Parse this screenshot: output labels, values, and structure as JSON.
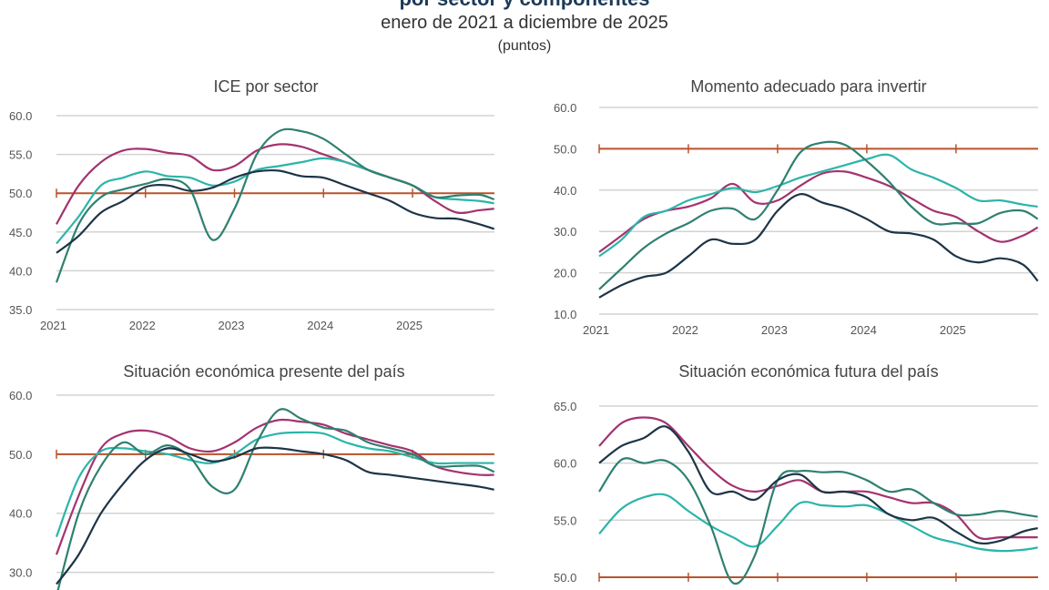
{
  "header": {
    "title_partial": "por sector y componentes",
    "subtitle": "enero de 2021 a diciembre de 2025",
    "unit": "(puntos)"
  },
  "colors": {
    "magenta": "#a3336f",
    "light_teal": "#2bb5aa",
    "dark_green": "#2f8070",
    "navy": "#1d3447",
    "reference": "#b8532c",
    "grid": "#d3d3d3"
  },
  "chart_data": [
    {
      "type": "line",
      "title": "ICE por sector",
      "ylim": [
        35,
        60
      ],
      "yticks": [
        "60.0",
        "55.0",
        "50.0",
        "45.0",
        "40.0",
        "35.0"
      ],
      "xticks": [
        "2021",
        "2022",
        "2023",
        "2024",
        "2025"
      ],
      "grid": true,
      "reference_line": 50,
      "x": [
        "2021-01",
        "2021-04",
        "2021-07",
        "2021-10",
        "2022-01",
        "2022-04",
        "2022-07",
        "2022-10",
        "2023-01",
        "2023-04",
        "2023-07",
        "2023-10",
        "2024-01",
        "2024-04",
        "2024-07",
        "2024-10",
        "2025-01",
        "2025-04",
        "2025-07",
        "2025-10",
        "2025-12"
      ],
      "series": [
        {
          "color": "#a3336f",
          "values": [
            46,
            51,
            54,
            55.5,
            55.7,
            55.2,
            54.8,
            53,
            53.5,
            55.5,
            56.3,
            56,
            55,
            54,
            53,
            52,
            51,
            49,
            47.5,
            47.8,
            48
          ]
        },
        {
          "color": "#2bb5aa",
          "values": [
            43.5,
            47,
            51,
            52,
            52.8,
            52.2,
            52,
            51,
            51.5,
            53,
            53.5,
            54,
            54.5,
            54,
            53,
            52,
            51,
            49.5,
            49.2,
            49,
            48.7
          ]
        },
        {
          "color": "#2f8070",
          "values": [
            38.5,
            46,
            49.5,
            50.5,
            51.2,
            51.8,
            50.5,
            44,
            48,
            55,
            58,
            58,
            57,
            55,
            53,
            52,
            51,
            49.5,
            49.7,
            49.8,
            49.2
          ]
        },
        {
          "color": "#1d3447",
          "values": [
            42.3,
            44.5,
            47.5,
            49,
            50.8,
            51,
            50.3,
            50.7,
            52,
            52.8,
            52.9,
            52.2,
            52,
            51,
            50,
            49,
            47.5,
            46.8,
            46.7,
            46,
            45.4
          ]
        }
      ]
    },
    {
      "type": "line",
      "title": "Momento adecuado para invertir",
      "ylim": [
        10,
        60
      ],
      "yticks": [
        "60.0",
        "50.0",
        "40.0",
        "30.0",
        "20.0",
        "10.0"
      ],
      "xticks": [
        "2021",
        "2022",
        "2023",
        "2024",
        "2025"
      ],
      "grid": true,
      "reference_line": 50,
      "x": [
        "2021-01",
        "2021-04",
        "2021-07",
        "2021-10",
        "2022-01",
        "2022-04",
        "2022-07",
        "2022-10",
        "2023-01",
        "2023-04",
        "2023-07",
        "2023-10",
        "2024-01",
        "2024-04",
        "2024-07",
        "2024-10",
        "2025-01",
        "2025-04",
        "2025-07",
        "2025-10",
        "2025-12"
      ],
      "series": [
        {
          "color": "#a3336f",
          "values": [
            25,
            29,
            33,
            35,
            36,
            38,
            41.5,
            37,
            37.5,
            41,
            44,
            44.5,
            43,
            41,
            38,
            35,
            33.5,
            30,
            27.5,
            29,
            31
          ]
        },
        {
          "color": "#2bb5aa",
          "values": [
            24,
            28,
            33.5,
            35,
            37.5,
            39,
            40.5,
            39.5,
            41,
            43,
            44.5,
            46,
            47.5,
            48.5,
            45,
            43,
            40.5,
            37.5,
            37.5,
            36.5,
            36
          ]
        },
        {
          "color": "#2f8070",
          "values": [
            16,
            21,
            26,
            29.5,
            32,
            35,
            35.5,
            33,
            40,
            49,
            51.5,
            51,
            47,
            42,
            36,
            32,
            32,
            32,
            34.5,
            35,
            33
          ]
        },
        {
          "color": "#1d3447",
          "values": [
            14,
            17,
            19,
            20,
            24,
            28,
            27,
            28,
            35,
            39,
            37,
            35.5,
            33,
            30,
            29.5,
            28,
            24,
            22.5,
            23.5,
            22,
            18
          ]
        }
      ]
    },
    {
      "type": "line",
      "title": "Situación económica presente del país",
      "ylim": [
        25,
        60
      ],
      "yticks": [
        "60.0",
        "50.0",
        "40.0",
        "30.0"
      ],
      "xticks": [],
      "grid": true,
      "reference_line": 50,
      "x": [
        "2021-01",
        "2021-04",
        "2021-07",
        "2021-10",
        "2022-01",
        "2022-04",
        "2022-07",
        "2022-10",
        "2023-01",
        "2023-04",
        "2023-07",
        "2023-10",
        "2024-01",
        "2024-04",
        "2024-07",
        "2024-10",
        "2025-01",
        "2025-04",
        "2025-07",
        "2025-10",
        "2025-12"
      ],
      "series": [
        {
          "color": "#a3336f",
          "values": [
            33,
            43,
            51,
            53.5,
            54,
            53,
            51,
            50.5,
            52,
            54.5,
            55.8,
            55.5,
            55,
            53.5,
            52.5,
            51.5,
            50.5,
            48,
            47,
            46.5,
            46.5
          ]
        },
        {
          "color": "#2bb5aa",
          "values": [
            36,
            46,
            50.5,
            51,
            50.5,
            50,
            49,
            48.5,
            50,
            52.5,
            53.5,
            53.7,
            53.5,
            52,
            51,
            50.5,
            49.5,
            48.5,
            48.5,
            48.5,
            48.5
          ]
        },
        {
          "color": "#2f8070",
          "values": [
            26,
            40,
            48,
            52,
            50,
            51.5,
            49.5,
            44.5,
            44,
            52,
            57.5,
            56,
            54.5,
            54,
            52,
            51,
            50,
            48,
            48,
            48,
            47
          ]
        },
        {
          "color": "#1d3447",
          "values": [
            28,
            33,
            40,
            45,
            49,
            51,
            50,
            48.8,
            49.5,
            51,
            51,
            50.5,
            50,
            49,
            47,
            46.5,
            46,
            45.5,
            45,
            44.5,
            44
          ]
        }
      ]
    },
    {
      "type": "line",
      "title": "Situación económica futura del país",
      "ylim": [
        48,
        65
      ],
      "yticks": [
        "65.0",
        "60.0",
        "55.0",
        "50.0"
      ],
      "xticks": [],
      "grid": true,
      "reference_line": 50,
      "x": [
        "2021-01",
        "2021-04",
        "2021-07",
        "2021-10",
        "2022-01",
        "2022-04",
        "2022-07",
        "2022-10",
        "2023-01",
        "2023-04",
        "2023-07",
        "2023-10",
        "2024-01",
        "2024-04",
        "2024-07",
        "2024-10",
        "2025-01",
        "2025-04",
        "2025-07",
        "2025-10",
        "2025-12"
      ],
      "series": [
        {
          "color": "#a3336f",
          "values": [
            61.5,
            63.5,
            64,
            63.5,
            61.5,
            59.5,
            58,
            57.5,
            58,
            58.5,
            57.5,
            57.5,
            57.5,
            57,
            56.5,
            56.5,
            55.5,
            53.5,
            53.5,
            53.5,
            53.5
          ]
        },
        {
          "color": "#2bb5aa",
          "values": [
            53.8,
            56,
            57,
            57.2,
            55.8,
            54.5,
            53.5,
            52.7,
            54.5,
            56.5,
            56.3,
            56.2,
            56.3,
            55.5,
            54.5,
            53.5,
            53,
            52.5,
            52.3,
            52.4,
            52.6
          ]
        },
        {
          "color": "#2f8070",
          "values": [
            57.5,
            60.3,
            60,
            60.2,
            58.5,
            54.5,
            49.5,
            52,
            58.5,
            59.3,
            59.2,
            59.2,
            58.5,
            57.5,
            57.7,
            56.5,
            55.5,
            55.5,
            55.8,
            55.5,
            55.3
          ]
        },
        {
          "color": "#1d3447",
          "values": [
            60,
            61.5,
            62.2,
            63.2,
            61,
            57.5,
            57.5,
            56.8,
            58.5,
            59,
            57.5,
            57.5,
            57,
            55.5,
            55,
            55.2,
            54,
            53,
            53.2,
            54,
            54.3
          ]
        }
      ]
    }
  ]
}
